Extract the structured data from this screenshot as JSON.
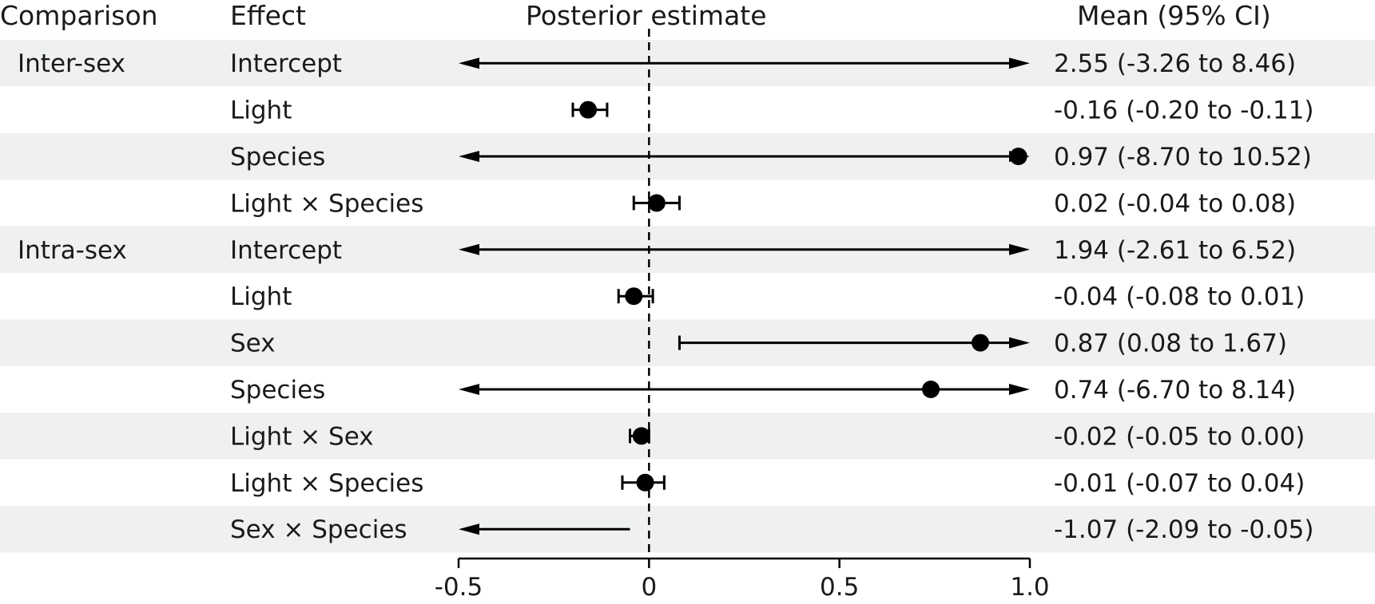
{
  "chart_data": {
    "type": "forest",
    "headers": {
      "comparison": "Comparison",
      "effect": "Effect",
      "estimate": "Posterior estimate",
      "ci": "Mean (95% CI)"
    },
    "xlim": [
      -0.5,
      1.0
    ],
    "xticks": [
      -0.5,
      0,
      0.5,
      1.0
    ],
    "xtick_labels": [
      "-0.5",
      "0",
      "0.5",
      "1.0"
    ],
    "reference_line": 0,
    "rows": [
      {
        "comparison": "Inter-sex",
        "effect": "Intercept",
        "mean": 2.55,
        "lower": -3.26,
        "upper": 8.46,
        "label": "2.55 (-3.26 to 8.46)"
      },
      {
        "comparison": "",
        "effect": "Light",
        "mean": -0.16,
        "lower": -0.2,
        "upper": -0.11,
        "label": "-0.16  (-0.20 to -0.11)"
      },
      {
        "comparison": "",
        "effect": "Species",
        "mean": 0.97,
        "lower": -8.7,
        "upper": 10.52,
        "label": "0.97 (-8.70 to 10.52)"
      },
      {
        "comparison": "",
        "effect": "Light × Species",
        "mean": 0.02,
        "lower": -0.04,
        "upper": 0.08,
        "label": "0.02 (-0.04 to 0.08)"
      },
      {
        "comparison": "Intra-sex",
        "effect": "Intercept",
        "mean": 1.94,
        "lower": -2.61,
        "upper": 6.52,
        "label": "1.94 (-2.61 to 6.52)"
      },
      {
        "comparison": "",
        "effect": "Light",
        "mean": -0.04,
        "lower": -0.08,
        "upper": 0.01,
        "label": "-0.04  (-0.08 to 0.01)"
      },
      {
        "comparison": "",
        "effect": "Sex",
        "mean": 0.87,
        "lower": 0.08,
        "upper": 1.67,
        "label": "0.87 (0.08 to 1.67)"
      },
      {
        "comparison": "",
        "effect": "Species",
        "mean": 0.74,
        "lower": -6.7,
        "upper": 8.14,
        "label": "0.74 (-6.70 to 8.14)"
      },
      {
        "comparison": "",
        "effect": "Light × Sex",
        "mean": -0.02,
        "lower": -0.05,
        "upper": 0.0,
        "label": "-0.02  (-0.05 to 0.00)"
      },
      {
        "comparison": "",
        "effect": "Light × Species",
        "mean": -0.01,
        "lower": -0.07,
        "upper": 0.04,
        "label": "-0.01  (-0.07 to 0.04)"
      },
      {
        "comparison": "",
        "effect": "Sex × Species",
        "mean": -1.07,
        "lower": -2.09,
        "upper": -0.05,
        "label": "-1.07  (-2.09 to -0.05)"
      }
    ],
    "colors": {
      "band": "#eef1ef",
      "ink": "#000000",
      "text": "#1a1a1a"
    }
  }
}
